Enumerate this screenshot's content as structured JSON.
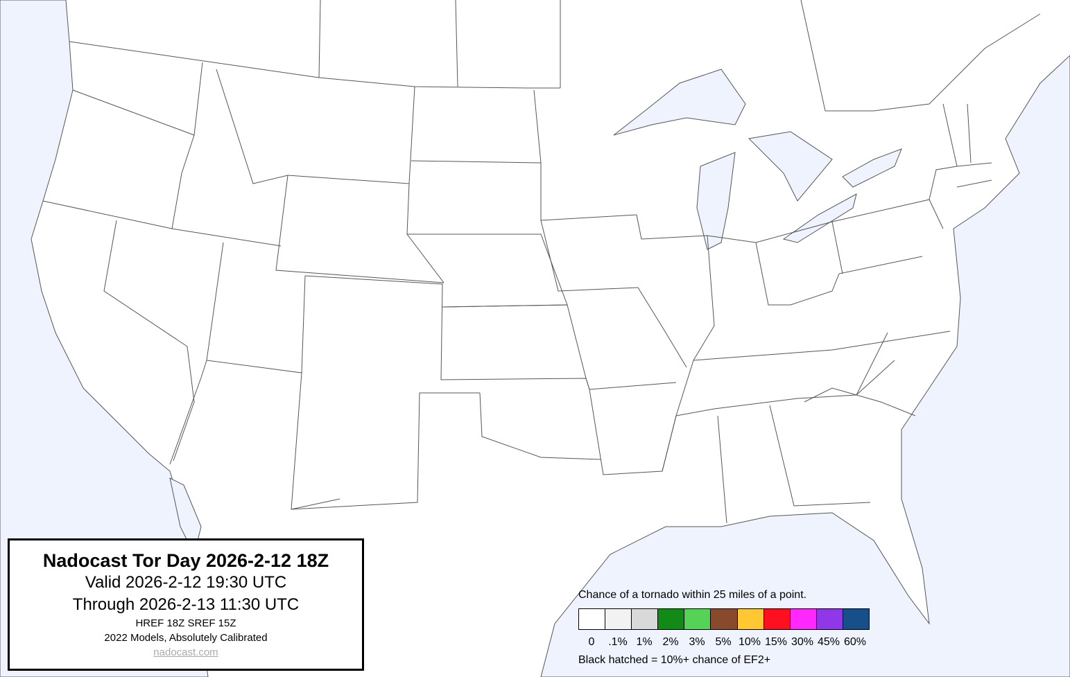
{
  "title_box": {
    "title": "Nadocast Tor Day 2026-2-12 18Z",
    "valid": "Valid 2026-2-12 19:30 UTC",
    "through": "Through 2026-2-13 11:30 UTC",
    "models": "HREF 18Z SREF 15Z",
    "calibration": "2022 Models, Absolutely Calibrated",
    "link": "nadocast.com"
  },
  "legend": {
    "title": "Chance of a tornado within 25 miles of a point.",
    "items": [
      {
        "label": "0",
        "color": "#ffffff"
      },
      {
        "label": ".1%",
        "color": "#f2f2f2"
      },
      {
        "label": "1%",
        "color": "#d9d9d9"
      },
      {
        "label": "2%",
        "color": "#118a17"
      },
      {
        "label": "3%",
        "color": "#55d357"
      },
      {
        "label": "5%",
        "color": "#88492c"
      },
      {
        "label": "10%",
        "color": "#ffc832"
      },
      {
        "label": "15%",
        "color": "#ff1020"
      },
      {
        "label": "30%",
        "color": "#ff28ff"
      },
      {
        "label": "45%",
        "color": "#9038e8"
      },
      {
        "label": "60%",
        "color": "#174f8a"
      }
    ],
    "note": "Black hatched = 10%+ chance of EF2+"
  },
  "map": {
    "water_color": "#eef3fd",
    "land_color": "#ffffff",
    "border_color": "#555555"
  }
}
